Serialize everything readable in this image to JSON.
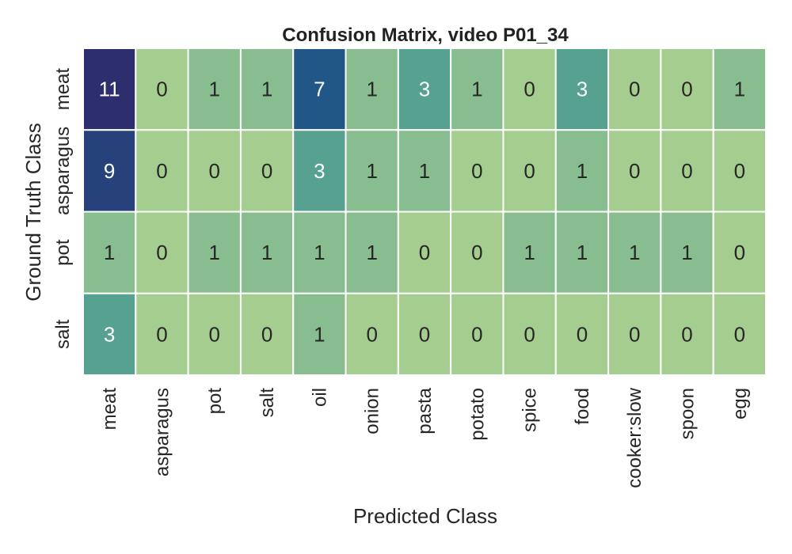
{
  "chart_data": {
    "type": "heatmap",
    "title": "Confusion Matrix, video P01_34",
    "xlabel": "Predicted Class",
    "ylabel": "Ground Truth Class",
    "x_categories": [
      "meat",
      "asparagus",
      "pot",
      "salt",
      "oil",
      "onion",
      "pasta",
      "potato",
      "spice",
      "food",
      "cooker:slow",
      "spoon",
      "egg"
    ],
    "y_categories": [
      "meat",
      "asparagus",
      "pot",
      "salt"
    ],
    "values": [
      [
        11,
        0,
        1,
        1,
        7,
        1,
        3,
        1,
        0,
        3,
        0,
        0,
        1
      ],
      [
        9,
        0,
        0,
        0,
        3,
        1,
        1,
        0,
        0,
        1,
        0,
        0,
        0
      ],
      [
        1,
        0,
        1,
        1,
        1,
        1,
        0,
        0,
        1,
        1,
        1,
        1,
        0
      ],
      [
        3,
        0,
        0,
        0,
        1,
        0,
        0,
        0,
        0,
        0,
        0,
        0,
        0
      ]
    ],
    "colormap": "crest",
    "colorbar": false,
    "grid": false
  }
}
